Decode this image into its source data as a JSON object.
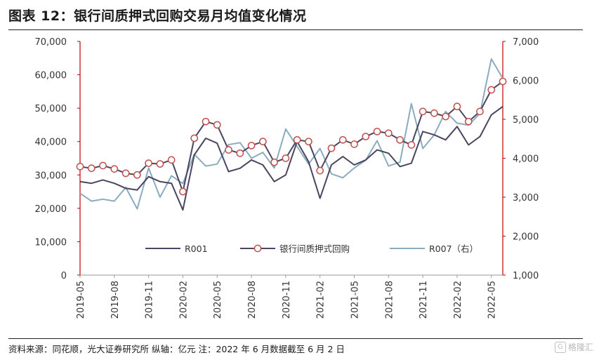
{
  "title": "图表 12：银行间质押式回购交易月均值变化情况",
  "footer": "资料来源：同花顺，光大证券研究所 纵轴：亿元    注：2022 年 6 月数据截至 6 月 2 日",
  "logo": {
    "icon": "G",
    "text": "格隆汇"
  },
  "chart_data": {
    "type": "line",
    "x": [
      "2019-05",
      "2019-06",
      "2019-07",
      "2019-08",
      "2019-09",
      "2019-10",
      "2019-11",
      "2019-12",
      "2020-01",
      "2020-02",
      "2020-03",
      "2020-04",
      "2020-05",
      "2020-06",
      "2020-07",
      "2020-08",
      "2020-09",
      "2020-10",
      "2020-11",
      "2020-12",
      "2021-01",
      "2021-02",
      "2021-03",
      "2021-04",
      "2021-05",
      "2021-06",
      "2021-07",
      "2021-08",
      "2021-09",
      "2021-10",
      "2021-11",
      "2021-12",
      "2022-01",
      "2022-02",
      "2022-03",
      "2022-04",
      "2022-05",
      "2022-06"
    ],
    "x_tick_labels": [
      "2019-05",
      "2019-08",
      "2019-11",
      "2020-02",
      "2020-05",
      "2020-08",
      "2020-11",
      "2021-02",
      "2021-05",
      "2021-08",
      "2021-11",
      "2022-02",
      "2022-05"
    ],
    "y_left": {
      "min": 0,
      "max": 70000,
      "ticks": [
        "0",
        "10,000",
        "20,000",
        "30,000",
        "40,000",
        "50,000",
        "60,000",
        "70,000"
      ]
    },
    "y_right": {
      "min": 1000,
      "max": 7000,
      "ticks": [
        "1,000",
        "2,000",
        "3,000",
        "4,000",
        "5,000",
        "6,000",
        "7,000"
      ]
    },
    "legend": {
      "placement": "bottom-center"
    },
    "series": [
      {
        "name": "R001",
        "axis": "left",
        "color": "#4a4560",
        "values": [
          28000,
          27500,
          28500,
          27500,
          26000,
          25500,
          29500,
          28000,
          27500,
          19500,
          36000,
          41000,
          39500,
          31000,
          32000,
          34500,
          33000,
          28000,
          30000,
          40000,
          34000,
          23000,
          33000,
          35500,
          33000,
          34500,
          37500,
          36500,
          32500,
          33500,
          43000,
          42000,
          40500,
          44500,
          39000,
          41500,
          48000,
          50500
        ]
      },
      {
        "name": "银行间质押式回购",
        "axis": "left",
        "color": "#4a4560",
        "marker": "circle",
        "marker_fill": "#ffffff",
        "marker_stroke": "#c0504d",
        "values": [
          32500,
          32000,
          32800,
          31800,
          30500,
          30000,
          33500,
          33300,
          34500,
          25000,
          41000,
          46000,
          45000,
          37500,
          36500,
          38800,
          40000,
          33800,
          35000,
          40500,
          40000,
          31300,
          38000,
          40500,
          39200,
          41500,
          43000,
          42500,
          40500,
          39000,
          49000,
          48500,
          47500,
          50500,
          46000,
          49000,
          55500,
          58000
        ]
      },
      {
        "name": "R007（右）",
        "axis": "right",
        "color": "#8bacbe",
        "values": [
          3100,
          2900,
          2950,
          2900,
          3250,
          2700,
          3750,
          3000,
          3550,
          3350,
          4100,
          3800,
          3850,
          4350,
          4400,
          4000,
          4150,
          3750,
          4750,
          4300,
          3850,
          4250,
          3600,
          3500,
          3750,
          3950,
          4450,
          3800,
          3900,
          5400,
          4250,
          4600,
          5200,
          4900,
          4850,
          5150,
          6550,
          6050
        ]
      }
    ]
  }
}
